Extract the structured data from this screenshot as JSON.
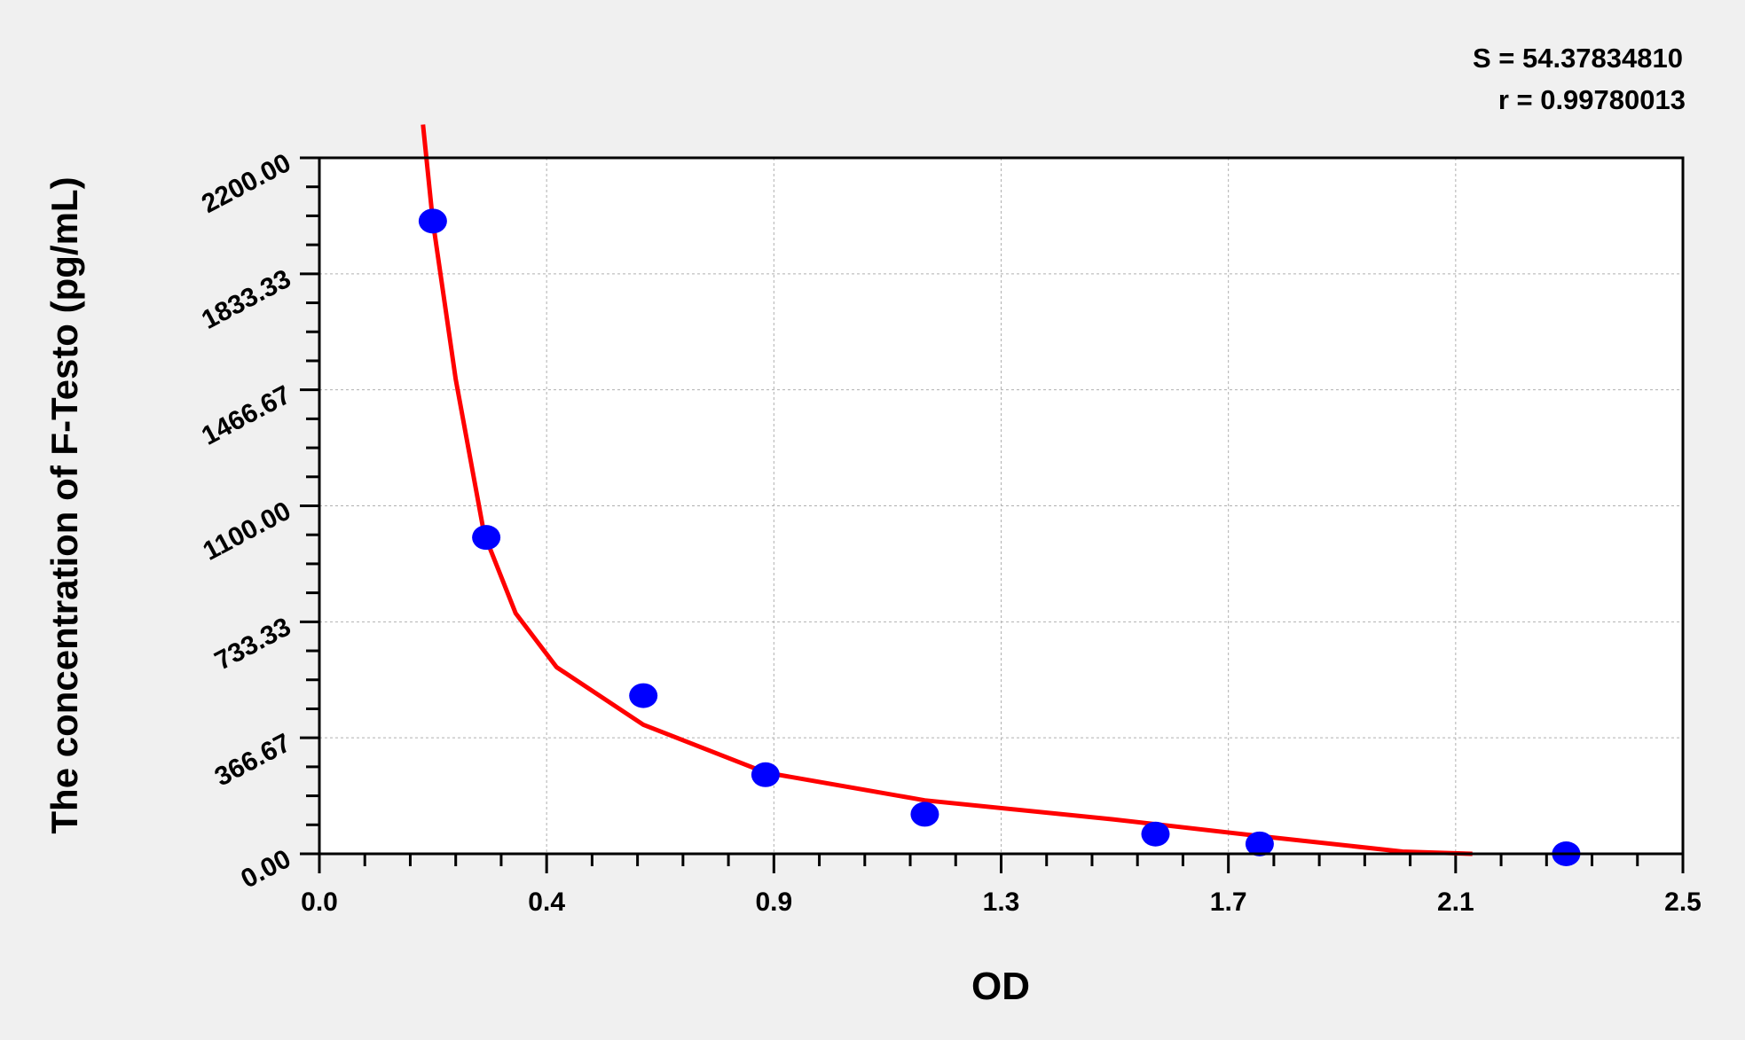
{
  "chart_data": {
    "type": "scatter",
    "title": "",
    "xlabel": "OD",
    "ylabel": "The concentration of F-Testo (pg/mL)",
    "xlim": [
      0,
      2.5
    ],
    "ylim": [
      0,
      2200
    ],
    "x_ticks": [
      "0.0",
      "0.4",
      "0.9",
      "1.3",
      "1.7",
      "2.1",
      "2.5"
    ],
    "y_ticks": [
      "0.00",
      "366.67",
      "733.33",
      "1100.00",
      "1466.67",
      "1833.33",
      "2200.00"
    ],
    "grid": true,
    "annotations": [
      "S = 54.37834810",
      "r = 0.99780013"
    ],
    "points": {
      "color": "#0000ff",
      "x": [
        0.208,
        0.306,
        0.594,
        0.818,
        1.11,
        1.533,
        1.724,
        2.286
      ],
      "y": [
        2000,
        1000,
        500,
        250,
        125,
        62.5,
        31.25,
        0
      ]
    },
    "fit_curve": {
      "color": "#ff0000",
      "x": [
        0.19,
        0.208,
        0.25,
        0.302,
        0.36,
        0.435,
        0.594,
        0.818,
        1.11,
        1.455,
        1.724,
        1.986,
        2.114
      ],
      "y": [
        2305,
        2000,
        1500,
        1012,
        760,
        590,
        408,
        257,
        169,
        109,
        56,
        7,
        0
      ]
    }
  }
}
